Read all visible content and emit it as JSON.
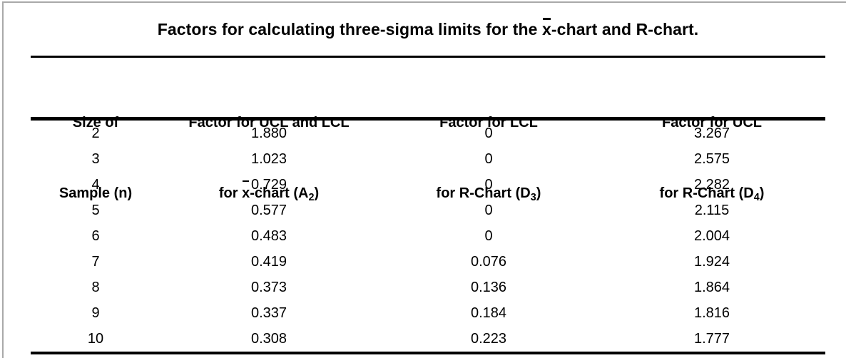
{
  "title": {
    "prefix": "Factors for calculating three-sigma limits for the ",
    "xbar": "x",
    "suffix": "-chart and R-chart."
  },
  "header": {
    "columns": [
      {
        "line1": "Size of",
        "line2": "Sample (n)"
      },
      {
        "line1": "Factor for UCL and LCL",
        "line2_pre": "for ",
        "xbar": "x",
        "line2_mid": "-chart (A",
        "sub": "2",
        "line2_end": ")"
      },
      {
        "line1": "Factor for LCL",
        "line2_pre": "for R-Chart (D",
        "sub": "3",
        "line2_end": ")"
      },
      {
        "line1": "Factor for UCL",
        "line2_pre": "for R-Chart (D",
        "sub": "4",
        "line2_end": ")"
      }
    ]
  },
  "table": {
    "rows": [
      [
        "2",
        "1.880",
        "0",
        "3.267"
      ],
      [
        "3",
        "1.023",
        "0",
        "2.575"
      ],
      [
        "4",
        "0.729",
        "0",
        "2.282"
      ],
      [
        "5",
        "0.577",
        "0",
        "2.115"
      ],
      [
        "6",
        "0.483",
        "0",
        "2.004"
      ],
      [
        "7",
        "0.419",
        "0.076",
        "1.924"
      ],
      [
        "8",
        "0.373",
        "0.136",
        "1.864"
      ],
      [
        "9",
        "0.337",
        "0.184",
        "1.816"
      ],
      [
        "10",
        "0.308",
        "0.223",
        "1.777"
      ]
    ]
  },
  "chart_data": {
    "type": "table",
    "title": "Factors for calculating three-sigma limits for the x̄-chart and R-chart.",
    "columns": [
      "Size of Sample (n)",
      "Factor for UCL and LCL for x̄-chart (A2)",
      "Factor for LCL for R-Chart (D3)",
      "Factor for UCL for R-Chart (D4)"
    ],
    "rows": [
      [
        2,
        1.88,
        0,
        3.267
      ],
      [
        3,
        1.023,
        0,
        2.575
      ],
      [
        4,
        0.729,
        0,
        2.282
      ],
      [
        5,
        0.577,
        0,
        2.115
      ],
      [
        6,
        0.483,
        0,
        2.004
      ],
      [
        7,
        0.419,
        0.076,
        1.924
      ],
      [
        8,
        0.373,
        0.136,
        1.864
      ],
      [
        9,
        0.337,
        0.184,
        1.816
      ],
      [
        10,
        0.308,
        0.223,
        1.777
      ]
    ]
  },
  "colors": {
    "frame_border": "#a9a9a9",
    "rule": "#000000",
    "text": "#000000",
    "background": "#ffffff"
  }
}
